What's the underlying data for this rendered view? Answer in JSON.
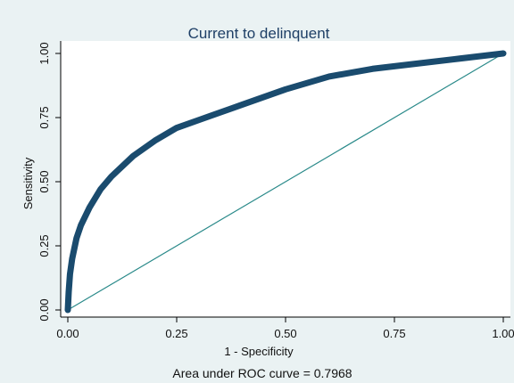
{
  "chart_data": {
    "type": "line",
    "title": "Current to delinquent",
    "xlabel": "1 - Specificity",
    "ylabel": "Sensitivity",
    "xlim": [
      0,
      1
    ],
    "ylim": [
      0,
      1
    ],
    "x_ticks": [
      "0.00",
      "0.25",
      "0.50",
      "0.75",
      "1.00"
    ],
    "y_ticks": [
      "0.00",
      "0.25",
      "0.50",
      "0.75",
      "1.00"
    ],
    "grid": false,
    "note": "Area under ROC curve = 0.7968",
    "series": [
      {
        "kind": "roc-curve",
        "x": [
          0.0,
          0.002,
          0.005,
          0.01,
          0.02,
          0.03,
          0.05,
          0.075,
          0.1,
          0.15,
          0.2,
          0.25,
          0.3,
          0.4,
          0.5,
          0.6,
          0.7,
          0.8,
          0.9,
          1.0
        ],
        "y": [
          0.0,
          0.07,
          0.14,
          0.2,
          0.28,
          0.33,
          0.4,
          0.47,
          0.52,
          0.6,
          0.66,
          0.71,
          0.74,
          0.8,
          0.86,
          0.91,
          0.94,
          0.96,
          0.98,
          1.0
        ]
      },
      {
        "kind": "reference-line",
        "x": [
          0,
          1
        ],
        "y": [
          0,
          1
        ]
      }
    ],
    "colors": {
      "background": "#eaf2f3",
      "curve": "#1a4b6e",
      "reference": "#2a8a8a",
      "title": "#1e3f66"
    }
  }
}
